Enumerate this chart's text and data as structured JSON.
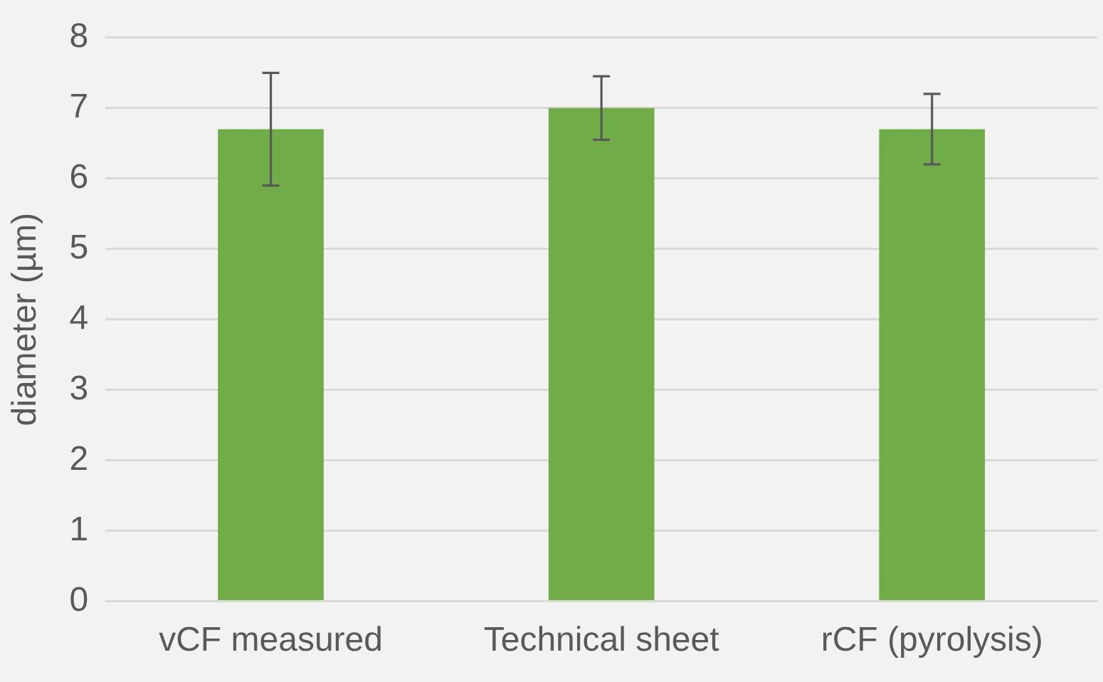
{
  "chart_data": {
    "type": "bar",
    "ylabel": "diameter (µm)",
    "categories": [
      "vCF measured",
      "Technical sheet",
      "rCF (pyrolysis)"
    ],
    "values": [
      6.7,
      7.0,
      6.7
    ],
    "errors": [
      0.8,
      0.45,
      0.5
    ],
    "color": "#70ad47",
    "ylim": [
      0,
      8
    ],
    "yticks": [
      0,
      1,
      2,
      3,
      4,
      5,
      6,
      7,
      8
    ],
    "grid": "y",
    "legend": false
  }
}
